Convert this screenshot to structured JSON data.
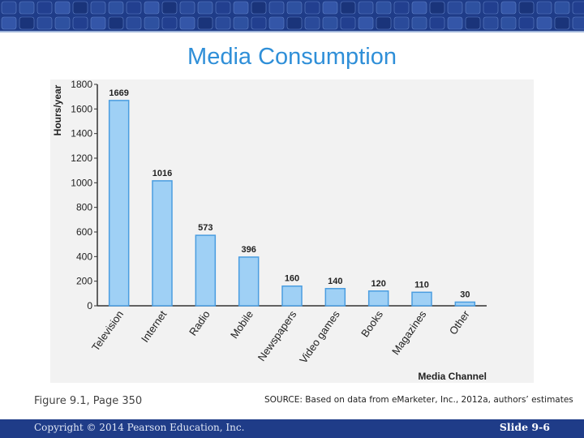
{
  "slide": {
    "title": "Media Consumption",
    "figure_caption": "Figure 9.1, Page 350",
    "source_caption": "SOURCE: Based on data from eMarketer, Inc., 2012a, authors’ estimates"
  },
  "footer": {
    "copyright": "Copyright © 2014 Pearson Education, Inc.",
    "slide_number": "Slide 9-6"
  },
  "colors": {
    "banner": "#1f3c88",
    "title": "#2f8fd8",
    "bar_fill": "#9fd0f5",
    "bar_edge": "#4a9de0",
    "chart_bg": "#f2f2f2"
  },
  "chart_data": {
    "type": "bar",
    "title": "",
    "xlabel": "Media Channel",
    "ylabel": "Hours/year",
    "categories": [
      "Television",
      "Internet",
      "Radio",
      "Mobile",
      "Newspapers",
      "Video games",
      "Books",
      "Magazines",
      "Other"
    ],
    "values": [
      1669,
      1016,
      573,
      396,
      160,
      140,
      120,
      110,
      30
    ],
    "value_labels": [
      "1669",
      "1016",
      "573",
      "396",
      "160",
      "140",
      "120",
      "110",
      "30"
    ],
    "yticks": [
      0,
      200,
      400,
      600,
      800,
      1000,
      1200,
      1400,
      1600,
      1800
    ],
    "ytick_labels": [
      "0",
      "200",
      "400",
      "600",
      "800",
      "1000",
      "1200",
      "1400",
      "1600",
      "1800"
    ],
    "ylim": [
      0,
      1800
    ],
    "grid": false,
    "legend": "none"
  }
}
